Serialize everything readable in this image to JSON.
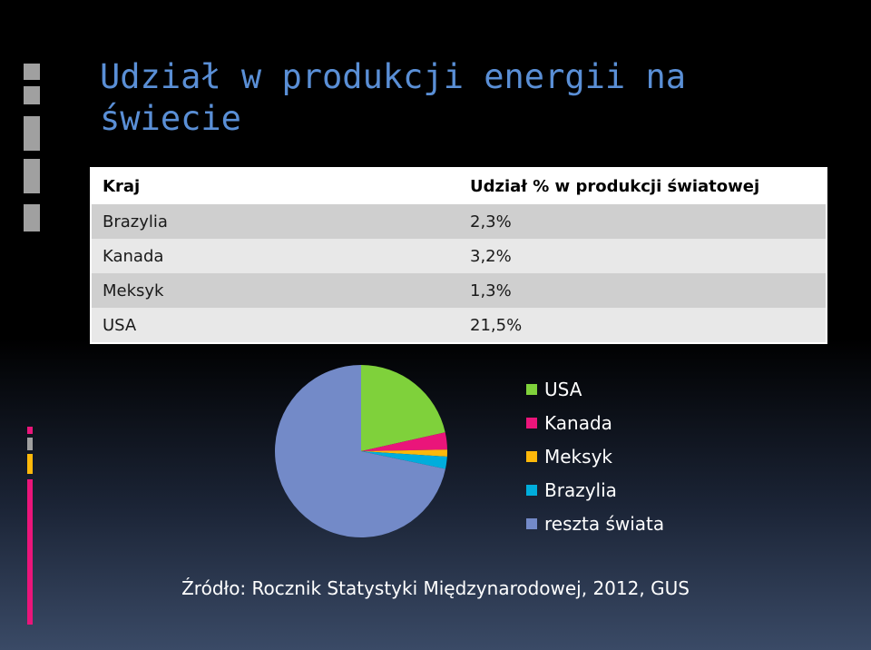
{
  "slide": {
    "title_line1": "Udział w produkcji energii na",
    "title_line2": "świecie",
    "source": "Źródło: Rocznik Statystyki Międzynarodowej, 2012, GUS"
  },
  "table": {
    "headers": [
      "Kraj",
      "Udział % w produkcji światowej"
    ],
    "rows": [
      [
        "Brazylia",
        "2,3%"
      ],
      [
        "Kanada",
        "3,2%"
      ],
      [
        "Meksyk",
        "1,3%"
      ],
      [
        "USA",
        "21,5%"
      ]
    ]
  },
  "colors": {
    "title": "#5a8fd6",
    "USA": "#7fd13b",
    "Kanada": "#ea157a",
    "Meksyk": "#feb80a",
    "Brazylia": "#00addc",
    "reszta świata": "#738ac8",
    "deco_gray": "#a0a0a0",
    "deco_pink": "#ea157a",
    "deco_yellow": "#feb80a"
  },
  "chart_data": {
    "type": "pie",
    "categories": [
      "USA",
      "Kanada",
      "Meksyk",
      "Brazylia",
      "reszta świata"
    ],
    "values": [
      21.5,
      3.2,
      1.3,
      2.3,
      71.7
    ],
    "legend_position": "right"
  }
}
